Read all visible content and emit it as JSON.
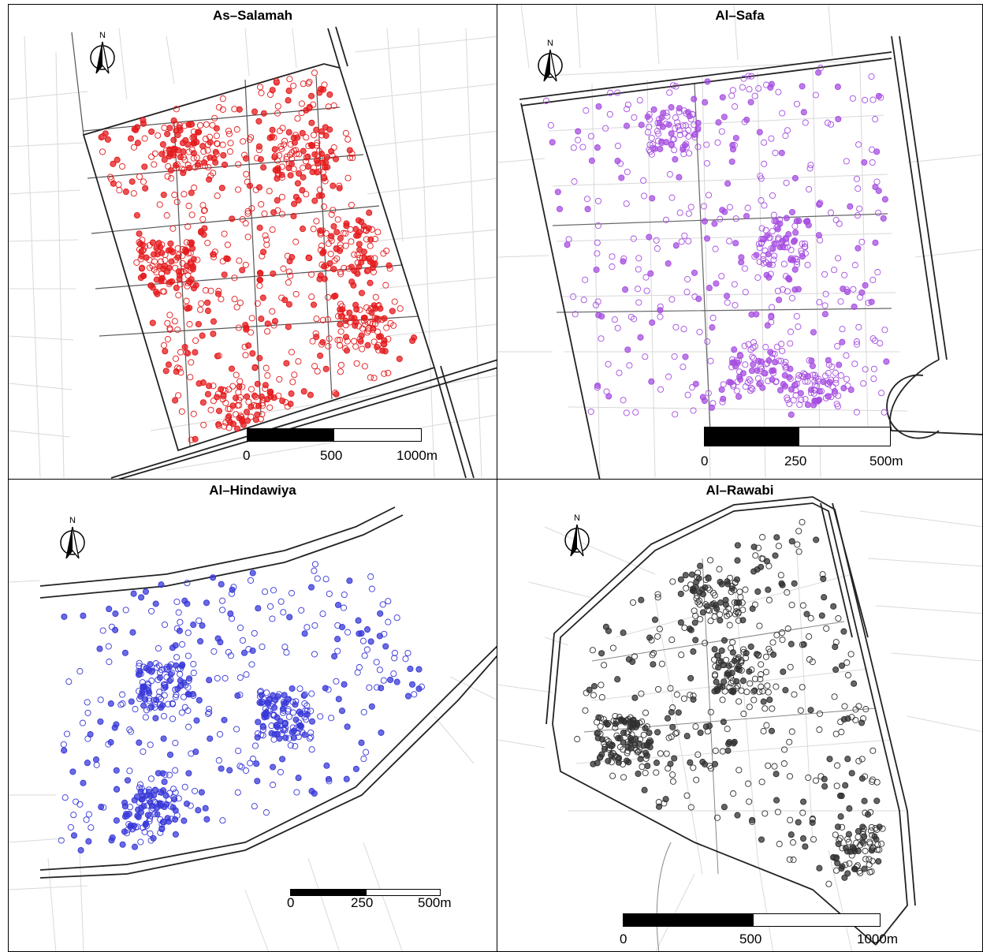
{
  "panels": [
    {
      "title": "As–Salamah",
      "north_label": "N",
      "point_color": "#e41a1c",
      "scale_labels": [
        "0",
        "500",
        "1000m"
      ]
    },
    {
      "title": "Al–Safa",
      "north_label": "N",
      "point_color": "#a64ee0",
      "scale_labels": [
        "0",
        "250",
        "500m"
      ]
    },
    {
      "title": "Al–Hindawiya",
      "north_label": "N",
      "point_color": "#3838d8",
      "scale_labels": [
        "0",
        "250",
        "500m"
      ]
    },
    {
      "title": "Al–Rawabi",
      "north_label": "N",
      "point_color": "#303030",
      "scale_labels": [
        "0",
        "500",
        "1000m"
      ]
    }
  ]
}
